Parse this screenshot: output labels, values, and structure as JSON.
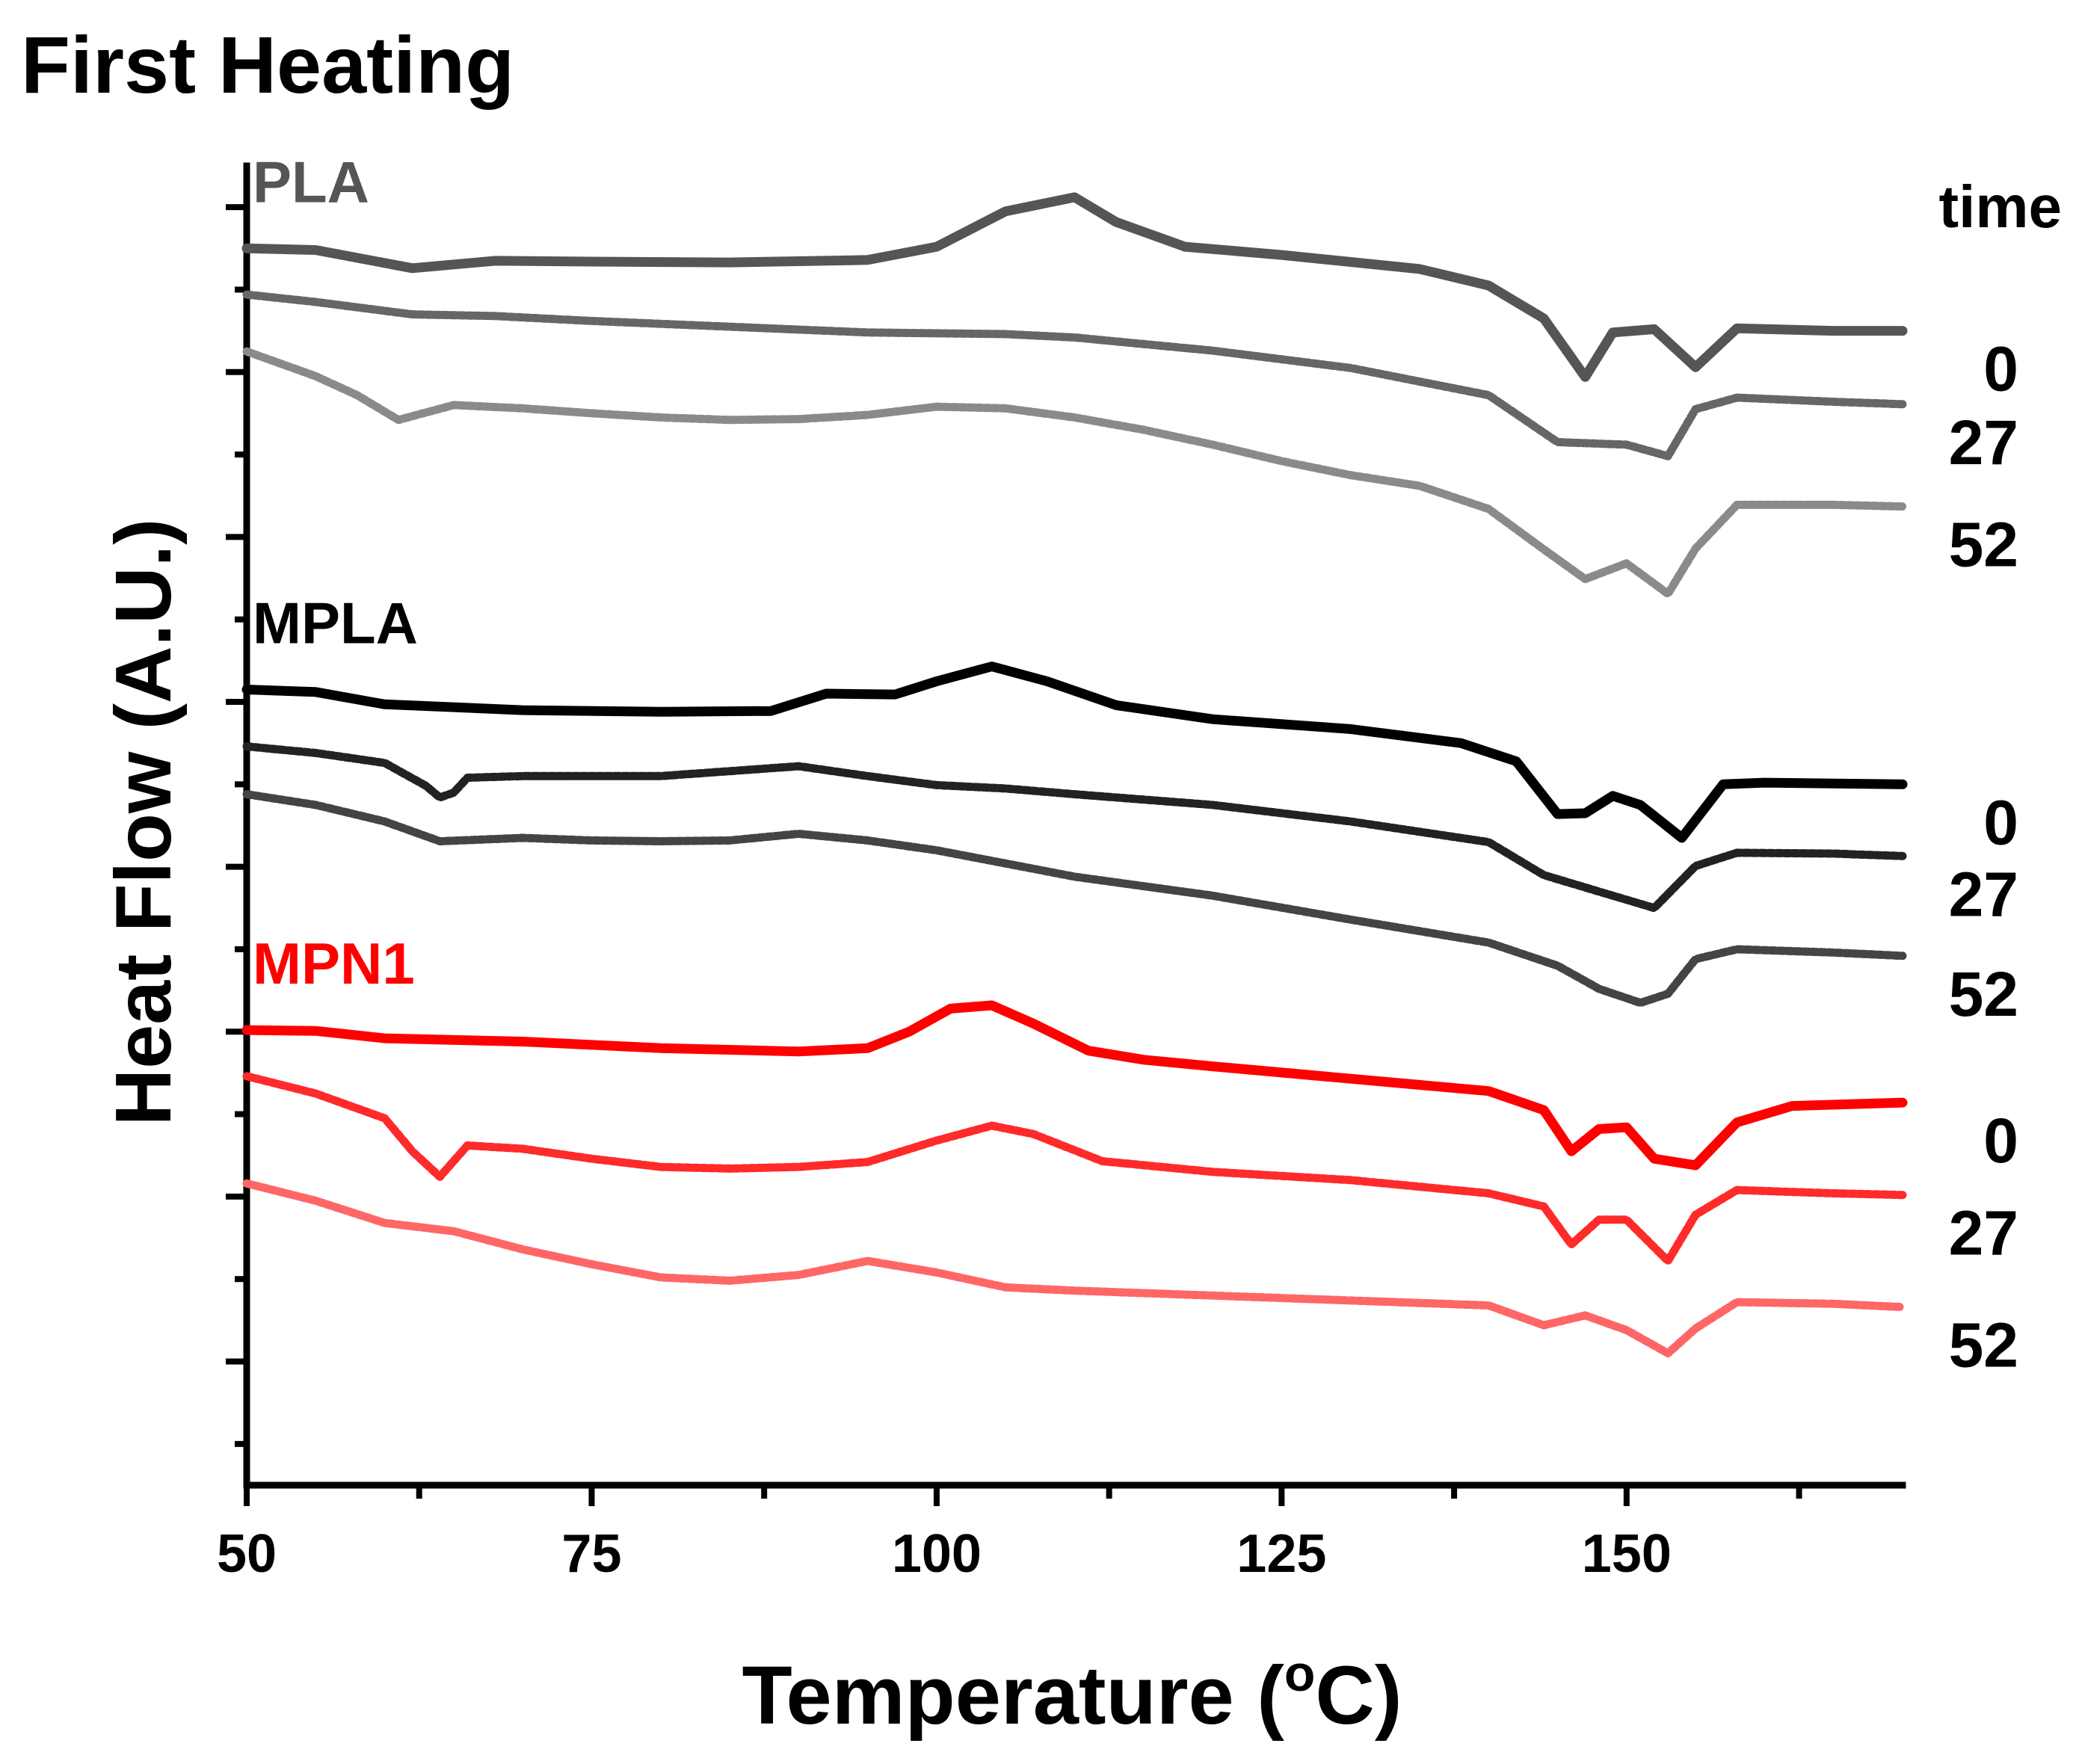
{
  "chart_data": {
    "type": "line",
    "title": "First Heating",
    "xlabel": "Temperature (°C)",
    "xlabel_parts": {
      "main": "Temperature (",
      "sup": "o",
      "end": "C)"
    },
    "ylabel": "Heat Flow (A.U.)",
    "xlim": [
      50,
      170
    ],
    "ylim": [
      -1.5,
      14.5
    ],
    "x_ticks": [
      50,
      75,
      100,
      125,
      150
    ],
    "x_tick_labels": [
      "50",
      "75",
      "100",
      "125",
      "150"
    ],
    "y_ticks": [
      0,
      2,
      4,
      6,
      8,
      10,
      12,
      14
    ],
    "legend_header": "time",
    "groups": [
      {
        "name": "PLA",
        "color": "#555555"
      },
      {
        "name": "MPLA",
        "color": "#000000"
      },
      {
        "name": "MPN1",
        "color": "#ff0000"
      }
    ],
    "series": [
      {
        "group": "PLA",
        "time_label": "0",
        "color": "#555555",
        "style": "solid",
        "x": [
          50,
          55,
          62,
          68,
          75,
          85,
          95,
          100,
          105,
          110,
          113,
          118,
          125,
          135,
          140,
          144,
          147,
          149,
          152,
          155,
          158,
          165,
          170
        ],
        "y": [
          13.5,
          13.48,
          13.26,
          13.35,
          13.34,
          13.33,
          13.36,
          13.52,
          13.95,
          14.12,
          13.82,
          13.52,
          13.42,
          13.25,
          13.05,
          12.65,
          11.94,
          12.48,
          12.52,
          12.06,
          12.53,
          12.5,
          12.5
        ]
      },
      {
        "group": "PLA",
        "time_label": "27",
        "color": "#666666",
        "style": "dotted",
        "x": [
          50,
          55,
          62,
          68,
          75,
          85,
          95,
          105,
          110,
          120,
          130,
          140,
          145,
          150,
          153,
          155,
          158,
          165,
          170
        ],
        "y": [
          12.94,
          12.85,
          12.7,
          12.68,
          12.62,
          12.55,
          12.48,
          12.46,
          12.42,
          12.26,
          12.05,
          11.72,
          11.15,
          11.12,
          10.98,
          11.55,
          11.69,
          11.64,
          11.61
        ]
      },
      {
        "group": "PLA",
        "time_label": "52",
        "color": "#8a8a8a",
        "style": "dotted",
        "x": [
          50,
          55,
          58,
          61,
          65,
          70,
          75,
          80,
          85,
          90,
          95,
          100,
          105,
          110,
          115,
          120,
          125,
          130,
          135,
          140,
          144,
          147,
          150,
          153,
          155,
          158,
          165,
          170
        ],
        "y": [
          12.25,
          11.95,
          11.72,
          11.42,
          11.6,
          11.56,
          11.5,
          11.45,
          11.42,
          11.43,
          11.48,
          11.58,
          11.56,
          11.45,
          11.3,
          11.12,
          10.92,
          10.75,
          10.62,
          10.34,
          9.85,
          9.49,
          9.68,
          9.31,
          9.86,
          10.39,
          10.39,
          10.37
        ]
      },
      {
        "group": "MPLA",
        "time_label": "0",
        "color": "#000000",
        "style": "solid",
        "x": [
          50,
          55,
          60,
          70,
          80,
          88,
          92,
          97,
          100,
          104,
          108,
          113,
          120,
          130,
          138,
          142,
          145,
          147,
          149,
          151,
          154,
          157,
          160,
          170
        ],
        "y": [
          8.15,
          8.12,
          7.97,
          7.9,
          7.88,
          7.89,
          8.1,
          8.09,
          8.25,
          8.43,
          8.25,
          7.96,
          7.79,
          7.67,
          7.5,
          7.28,
          6.64,
          6.65,
          6.86,
          6.75,
          6.35,
          7.0,
          7.02,
          7.0
        ]
      },
      {
        "group": "MPLA",
        "time_label": "27",
        "color": "#222222",
        "style": "dotted",
        "x": [
          50,
          55,
          60,
          63,
          64,
          65,
          66,
          70,
          80,
          90,
          95,
          100,
          105,
          110,
          120,
          130,
          140,
          144,
          148,
          152,
          155,
          158,
          165,
          170
        ],
        "y": [
          7.46,
          7.38,
          7.26,
          6.98,
          6.84,
          6.9,
          7.08,
          7.1,
          7.1,
          7.22,
          7.1,
          6.99,
          6.95,
          6.88,
          6.75,
          6.55,
          6.3,
          5.9,
          5.7,
          5.5,
          6.01,
          6.17,
          6.16,
          6.13
        ]
      },
      {
        "group": "MPLA",
        "time_label": "52",
        "color": "#444444",
        "style": "dotted",
        "x": [
          50,
          55,
          60,
          64,
          70,
          75,
          80,
          85,
          90,
          95,
          100,
          105,
          110,
          120,
          130,
          140,
          145,
          148,
          151,
          153,
          155,
          158,
          165,
          170
        ],
        "y": [
          6.88,
          6.75,
          6.55,
          6.31,
          6.35,
          6.32,
          6.31,
          6.32,
          6.4,
          6.32,
          6.2,
          6.04,
          5.88,
          5.65,
          5.36,
          5.08,
          4.8,
          4.52,
          4.35,
          4.46,
          4.88,
          5.0,
          4.96,
          4.92
        ]
      },
      {
        "group": "MPN1",
        "time_label": "0",
        "color": "#ff0000",
        "style": "solid",
        "x": [
          50,
          55,
          60,
          70,
          80,
          90,
          95,
          98,
          101,
          104,
          107,
          111,
          115,
          120,
          130,
          140,
          144,
          146,
          148,
          150,
          152,
          155,
          158,
          162,
          170
        ],
        "y": [
          4.02,
          4.01,
          3.92,
          3.88,
          3.8,
          3.76,
          3.8,
          4.0,
          4.28,
          4.32,
          4.1,
          3.77,
          3.66,
          3.58,
          3.43,
          3.28,
          3.05,
          2.55,
          2.82,
          2.84,
          2.46,
          2.38,
          2.9,
          3.1,
          3.14
        ]
      },
      {
        "group": "MPN1",
        "time_label": "27",
        "color": "#ff2a2a",
        "style": "dotted",
        "x": [
          50,
          55,
          60,
          62,
          64,
          66,
          70,
          75,
          80,
          85,
          90,
          95,
          100,
          104,
          107,
          112,
          120,
          130,
          140,
          144,
          146,
          148,
          150,
          153,
          155,
          158,
          165,
          170
        ],
        "y": [
          3.46,
          3.25,
          2.95,
          2.55,
          2.24,
          2.62,
          2.58,
          2.46,
          2.36,
          2.34,
          2.36,
          2.42,
          2.68,
          2.86,
          2.76,
          2.43,
          2.3,
          2.2,
          2.04,
          1.88,
          1.42,
          1.72,
          1.72,
          1.22,
          1.78,
          2.08,
          2.04,
          2.02
        ]
      },
      {
        "group": "MPN1",
        "time_label": "52",
        "color": "#ff6666",
        "style": "dotted",
        "x": [
          50,
          55,
          60,
          65,
          70,
          75,
          80,
          85,
          90,
          95,
          100,
          105,
          110,
          120,
          130,
          140,
          144,
          147,
          150,
          153,
          155,
          158,
          165,
          170
        ],
        "y": [
          2.16,
          1.95,
          1.68,
          1.58,
          1.36,
          1.18,
          1.02,
          0.98,
          1.05,
          1.22,
          1.08,
          0.9,
          0.86,
          0.8,
          0.74,
          0.68,
          0.44,
          0.56,
          0.38,
          0.1,
          0.4,
          0.72,
          0.7,
          0.66
        ]
      }
    ]
  }
}
